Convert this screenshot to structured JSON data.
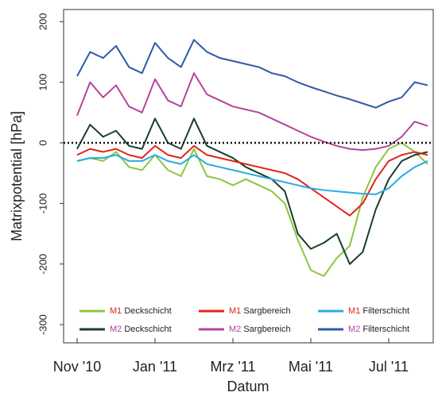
{
  "chart_data": {
    "type": "line",
    "y_label": "Matrixpotential [hPa]",
    "x_label": "Datum",
    "categories": [
      "Nov '10",
      null,
      null,
      null,
      null,
      null,
      "Jan '11",
      null,
      null,
      null,
      null,
      null,
      "Mrz '11",
      null,
      null,
      null,
      null,
      null,
      "Mai '11",
      null,
      null,
      null,
      null,
      null,
      "Jul '11",
      null,
      null,
      null
    ],
    "ylim": [
      -330,
      220
    ],
    "yticks": [
      -300,
      -200,
      -100,
      0,
      100,
      200
    ],
    "reference_line": 0,
    "series": [
      {
        "name": "M1 Deckschicht",
        "color": "#8dc63f",
        "values": [
          -30,
          -25,
          -30,
          -15,
          -40,
          -45,
          -20,
          -45,
          -55,
          -10,
          -55,
          -60,
          -70,
          -60,
          -70,
          -80,
          -100,
          -160,
          -210,
          -220,
          -190,
          -170,
          -90,
          -40,
          -10,
          0,
          -15,
          -35
        ]
      },
      {
        "name": "M2 Deckschicht",
        "color": "#173f2a",
        "values": [
          -10,
          30,
          10,
          20,
          -5,
          -10,
          40,
          0,
          -10,
          40,
          -5,
          -15,
          -25,
          -40,
          -50,
          -60,
          -80,
          -150,
          -175,
          -165,
          -150,
          -200,
          -180,
          -110,
          -60,
          -30,
          -20,
          -15
        ]
      },
      {
        "name": "M1 Sargbereich",
        "color": "#e2231a",
        "values": [
          -20,
          -10,
          -15,
          -10,
          -20,
          -25,
          -5,
          -20,
          -25,
          -5,
          -20,
          -25,
          -30,
          -35,
          -40,
          -45,
          -50,
          -60,
          -75,
          -90,
          -105,
          -120,
          -100,
          -60,
          -30,
          -20,
          -15,
          -20
        ]
      },
      {
        "name": "M2 Sargbereich",
        "color": "#b5449b",
        "values": [
          45,
          100,
          75,
          95,
          60,
          50,
          105,
          70,
          60,
          115,
          80,
          70,
          60,
          55,
          50,
          40,
          30,
          20,
          10,
          2,
          -5,
          -10,
          -12,
          -10,
          -5,
          10,
          35,
          28
        ]
      },
      {
        "name": "M1 Filterschicht",
        "color": "#29abe2",
        "values": [
          -30,
          -25,
          -25,
          -20,
          -30,
          -30,
          -20,
          -30,
          -35,
          -20,
          -35,
          -40,
          -45,
          -50,
          -55,
          -60,
          -65,
          -70,
          -75,
          -78,
          -80,
          -82,
          -84,
          -85,
          -75,
          -55,
          -40,
          -30
        ]
      },
      {
        "name": "M2 Filterschicht",
        "color": "#2e5aa5",
        "values": [
          110,
          150,
          140,
          160,
          125,
          115,
          165,
          140,
          125,
          170,
          150,
          140,
          135,
          130,
          125,
          115,
          110,
          100,
          92,
          85,
          78,
          72,
          65,
          58,
          68,
          75,
          100,
          95
        ]
      }
    ]
  }
}
